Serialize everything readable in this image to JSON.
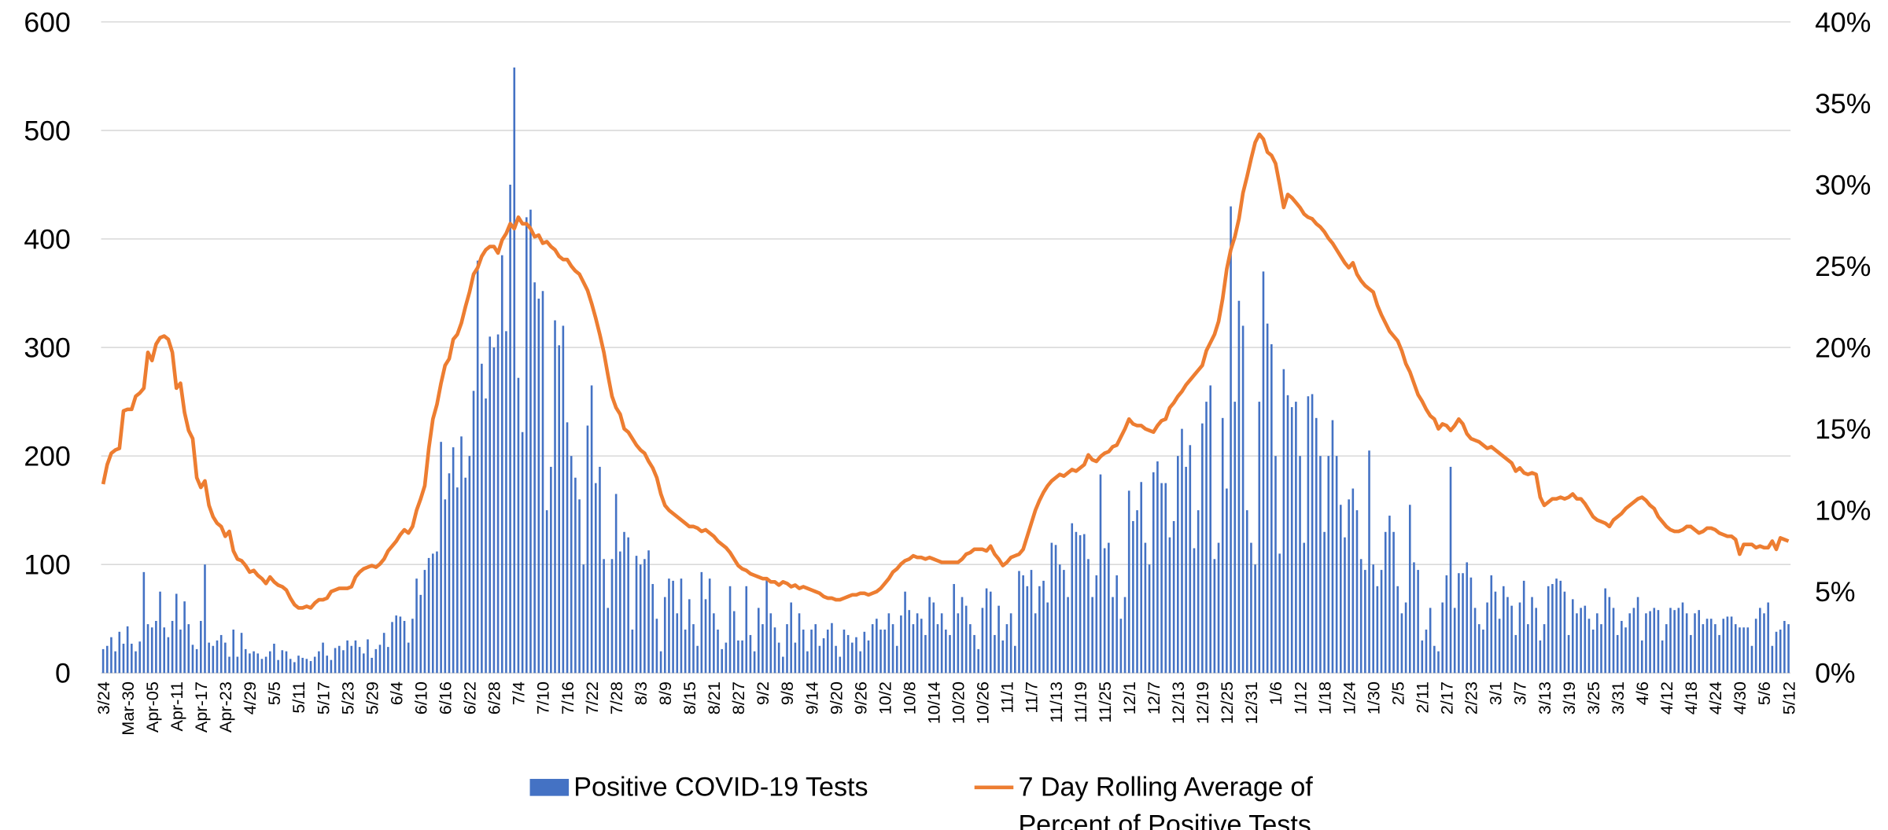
{
  "chart_data": {
    "type": "combo",
    "categories": [
      "3/24",
      null,
      null,
      null,
      null,
      null,
      "Mar-30",
      null,
      null,
      null,
      null,
      null,
      "Apr-05",
      null,
      null,
      null,
      null,
      null,
      "Apr-11",
      null,
      null,
      null,
      null,
      null,
      "Apr-17",
      null,
      null,
      null,
      null,
      null,
      "Apr-23",
      null,
      null,
      null,
      null,
      null,
      "4/29",
      null,
      null,
      null,
      null,
      null,
      "5/5",
      null,
      null,
      null,
      null,
      null,
      "5/11",
      null,
      null,
      null,
      null,
      null,
      "5/17",
      null,
      null,
      null,
      null,
      null,
      "5/23",
      null,
      null,
      null,
      null,
      null,
      "5/29",
      null,
      null,
      null,
      null,
      null,
      "6/4",
      null,
      null,
      null,
      null,
      null,
      "6/10",
      null,
      null,
      null,
      null,
      null,
      "6/16",
      null,
      null,
      null,
      null,
      null,
      "6/22",
      null,
      null,
      null,
      null,
      null,
      "6/28",
      null,
      null,
      null,
      null,
      null,
      "7/4",
      null,
      null,
      null,
      null,
      null,
      "7/10",
      null,
      null,
      null,
      null,
      null,
      "7/16",
      null,
      null,
      null,
      null,
      null,
      "7/22",
      null,
      null,
      null,
      null,
      null,
      "7/28",
      null,
      null,
      null,
      null,
      null,
      "8/3",
      null,
      null,
      null,
      null,
      null,
      "8/9",
      null,
      null,
      null,
      null,
      null,
      "8/15",
      null,
      null,
      null,
      null,
      null,
      "8/21",
      null,
      null,
      null,
      null,
      null,
      "8/27",
      null,
      null,
      null,
      null,
      null,
      "9/2",
      null,
      null,
      null,
      null,
      null,
      "9/8",
      null,
      null,
      null,
      null,
      null,
      "9/14",
      null,
      null,
      null,
      null,
      null,
      "9/20",
      null,
      null,
      null,
      null,
      null,
      "9/26",
      null,
      null,
      null,
      null,
      null,
      "10/2",
      null,
      null,
      null,
      null,
      null,
      "10/8",
      null,
      null,
      null,
      null,
      null,
      "10/14",
      null,
      null,
      null,
      null,
      null,
      "10/20",
      null,
      null,
      null,
      null,
      null,
      "10/26",
      null,
      null,
      null,
      null,
      null,
      "11/1",
      null,
      null,
      null,
      null,
      null,
      "11/7",
      null,
      null,
      null,
      null,
      null,
      "11/13",
      null,
      null,
      null,
      null,
      null,
      "11/19",
      null,
      null,
      null,
      null,
      null,
      "11/25",
      null,
      null,
      null,
      null,
      null,
      "12/1",
      null,
      null,
      null,
      null,
      null,
      "12/7",
      null,
      null,
      null,
      null,
      null,
      "12/13",
      null,
      null,
      null,
      null,
      null,
      "12/19",
      null,
      null,
      null,
      null,
      null,
      "12/25",
      null,
      null,
      null,
      null,
      null,
      "12/31",
      null,
      null,
      null,
      null,
      null,
      "1/6",
      null,
      null,
      null,
      null,
      null,
      "1/12",
      null,
      null,
      null,
      null,
      null,
      "1/18",
      null,
      null,
      null,
      null,
      null,
      "1/24",
      null,
      null,
      null,
      null,
      null,
      "1/30",
      null,
      null,
      null,
      null,
      null,
      "2/5",
      null,
      null,
      null,
      null,
      null,
      "2/11",
      null,
      null,
      null,
      null,
      null,
      "2/17",
      null,
      null,
      null,
      null,
      null,
      "2/23",
      null,
      null,
      null,
      null,
      null,
      "3/1",
      null,
      null,
      null,
      null,
      null,
      "3/7",
      null,
      null,
      null,
      null,
      null,
      "3/13",
      null,
      null,
      null,
      null,
      null,
      "3/19",
      null,
      null,
      null,
      null,
      null,
      "3/25",
      null,
      null,
      null,
      null,
      null,
      "3/31",
      null,
      null,
      null,
      null,
      null,
      "4/6",
      null,
      null,
      null,
      null,
      null,
      "4/12",
      null,
      null,
      null,
      null,
      null,
      "4/18",
      null,
      null,
      null,
      null,
      null,
      "4/24",
      null,
      null,
      null,
      null,
      null,
      "4/30",
      null,
      null,
      null,
      null,
      null,
      "5/6",
      null,
      null,
      null,
      null,
      null,
      "5/12"
    ],
    "series": [
      {
        "name": "Positive COVID-19 Tests",
        "type": "bar",
        "color": "#4472c4",
        "values": [
          22,
          25,
          33,
          20,
          38,
          27,
          43,
          27,
          20,
          29,
          93,
          45,
          42,
          48,
          75,
          42,
          33,
          48,
          73,
          40,
          66,
          45,
          26,
          22,
          48,
          100,
          28,
          25,
          30,
          35,
          28,
          15,
          40,
          15,
          37,
          22,
          18,
          20,
          18,
          13,
          15,
          20,
          27,
          12,
          21,
          20,
          13,
          10,
          16,
          14,
          13,
          11,
          15,
          20,
          28,
          16,
          12,
          23,
          25,
          21,
          30,
          25,
          30,
          24,
          18,
          31,
          14,
          22,
          26,
          37,
          24,
          47,
          53,
          52,
          48,
          28,
          50,
          87,
          72,
          95,
          106,
          110,
          112,
          213,
          160,
          184,
          208,
          171,
          218,
          180,
          200,
          260,
          380,
          285,
          253,
          310,
          300,
          312,
          385,
          315,
          450,
          558,
          272,
          222,
          420,
          427,
          360,
          345,
          352,
          150,
          190,
          325,
          302,
          320,
          231,
          200,
          180,
          160,
          100,
          228,
          265,
          175,
          190,
          105,
          60,
          105,
          165,
          112,
          130,
          125,
          40,
          108,
          100,
          105,
          113,
          82,
          50,
          20,
          70,
          87,
          85,
          55,
          87,
          40,
          68,
          45,
          25,
          93,
          68,
          87,
          55,
          40,
          22,
          28,
          80,
          57,
          30,
          30,
          80,
          35,
          20,
          60,
          45,
          86,
          55,
          42,
          28,
          15,
          45,
          65,
          28,
          55,
          40,
          20,
          40,
          45,
          25,
          32,
          40,
          46,
          25,
          15,
          40,
          35,
          28,
          33,
          20,
          38,
          30,
          45,
          50,
          40,
          40,
          55,
          45,
          25,
          53,
          75,
          58,
          45,
          55,
          50,
          35,
          70,
          65,
          45,
          55,
          40,
          35,
          82,
          55,
          70,
          62,
          45,
          35,
          22,
          60,
          78,
          75,
          35,
          62,
          30,
          45,
          55,
          25,
          94,
          90,
          80,
          95,
          55,
          80,
          85,
          65,
          120,
          118,
          100,
          95,
          70,
          138,
          130,
          127,
          128,
          105,
          70,
          90,
          183,
          115,
          120,
          70,
          90,
          50,
          70,
          168,
          140,
          150,
          176,
          120,
          100,
          185,
          195,
          175,
          175,
          125,
          140,
          200,
          225,
          190,
          210,
          115,
          150,
          230,
          250,
          265,
          105,
          120,
          235,
          170,
          430,
          250,
          343,
          320,
          150,
          120,
          100,
          250,
          370,
          322,
          303,
          200,
          110,
          280,
          256,
          245,
          250,
          200,
          120,
          255,
          257,
          235,
          200,
          130,
          200,
          233,
          200,
          155,
          125,
          160,
          170,
          150,
          105,
          95,
          205,
          100,
          80,
          95,
          130,
          145,
          130,
          80,
          55,
          65,
          155,
          102,
          95,
          30,
          40,
          60,
          25,
          20,
          65,
          90,
          190,
          60,
          92,
          92,
          102,
          88,
          60,
          45,
          40,
          65,
          90,
          75,
          50,
          80,
          70,
          62,
          35,
          65,
          85,
          45,
          70,
          60,
          30,
          45,
          80,
          82,
          87,
          85,
          75,
          35,
          68,
          55,
          60,
          62,
          50,
          40,
          55,
          45,
          78,
          70,
          60,
          35,
          48,
          42,
          55,
          60,
          70,
          30,
          55,
          57,
          60,
          58,
          30,
          45,
          60,
          58,
          60,
          65,
          55,
          35,
          55,
          58,
          45,
          50,
          50,
          45,
          35,
          50,
          52,
          52,
          45,
          42,
          42,
          42,
          25,
          50,
          60,
          55,
          65,
          25,
          38,
          40,
          48,
          45
        ]
      },
      {
        "name": "7 Day Rolling Average of Percent of Positive Tests",
        "type": "line",
        "axis": "y2",
        "color": "#ed7d31",
        "values": [
          11.6,
          12.8,
          13.5,
          13.7,
          13.8,
          16.1,
          16.2,
          16.2,
          17.0,
          17.2,
          17.5,
          19.7,
          19.2,
          20.2,
          20.6,
          20.7,
          20.5,
          19.7,
          17.5,
          17.8,
          16.0,
          14.9,
          14.4,
          12.0,
          11.4,
          11.8,
          10.3,
          9.6,
          9.2,
          9.0,
          8.4,
          8.7,
          7.5,
          7.0,
          6.9,
          6.6,
          6.2,
          6.3,
          6.0,
          5.8,
          5.5,
          5.9,
          5.6,
          5.4,
          5.3,
          5.1,
          4.6,
          4.2,
          4.0,
          4.0,
          4.1,
          4.0,
          4.3,
          4.5,
          4.5,
          4.6,
          5.0,
          5.1,
          5.2,
          5.2,
          5.2,
          5.3,
          5.9,
          6.2,
          6.4,
          6.5,
          6.6,
          6.5,
          6.7,
          7.0,
          7.5,
          7.8,
          8.1,
          8.5,
          8.8,
          8.6,
          9.0,
          10.0,
          10.7,
          11.5,
          13.8,
          15.6,
          16.5,
          17.8,
          18.9,
          19.3,
          20.5,
          20.8,
          21.5,
          22.5,
          23.4,
          24.5,
          24.9,
          25.6,
          26.0,
          26.2,
          26.2,
          25.8,
          26.6,
          27.0,
          27.6,
          27.3,
          28.0,
          27.6,
          27.6,
          27.3,
          26.8,
          26.9,
          26.4,
          26.5,
          26.2,
          26.0,
          25.6,
          25.4,
          25.4,
          25.0,
          24.7,
          24.5,
          24.0,
          23.5,
          22.7,
          21.8,
          20.8,
          19.7,
          18.3,
          17.0,
          16.3,
          15.9,
          15.0,
          14.8,
          14.4,
          14.0,
          13.7,
          13.5,
          13.0,
          12.6,
          12.0,
          11.0,
          10.3,
          10.0,
          9.8,
          9.6,
          9.4,
          9.2,
          9.0,
          9.0,
          8.9,
          8.7,
          8.8,
          8.6,
          8.4,
          8.1,
          7.9,
          7.7,
          7.4,
          7.0,
          6.6,
          6.4,
          6.3,
          6.1,
          6.0,
          5.9,
          5.8,
          5.8,
          5.6,
          5.6,
          5.4,
          5.6,
          5.5,
          5.3,
          5.4,
          5.2,
          5.3,
          5.2,
          5.1,
          5.0,
          4.9,
          4.7,
          4.6,
          4.6,
          4.5,
          4.5,
          4.6,
          4.7,
          4.8,
          4.8,
          4.9,
          4.9,
          4.8,
          4.9,
          5.0,
          5.2,
          5.5,
          5.8,
          6.2,
          6.4,
          6.7,
          6.9,
          7.0,
          7.2,
          7.1,
          7.1,
          7.0,
          7.1,
          7.0,
          6.9,
          6.8,
          6.8,
          6.8,
          6.8,
          6.8,
          7.0,
          7.3,
          7.4,
          7.6,
          7.6,
          7.6,
          7.5,
          7.8,
          7.3,
          7.0,
          6.6,
          6.8,
          7.1,
          7.2,
          7.3,
          7.6,
          8.4,
          9.2,
          10.0,
          10.6,
          11.1,
          11.5,
          11.8,
          12.0,
          12.2,
          12.1,
          12.3,
          12.5,
          12.4,
          12.6,
          12.8,
          13.4,
          13.1,
          13.0,
          13.3,
          13.5,
          13.6,
          13.9,
          14.0,
          14.5,
          15.0,
          15.6,
          15.3,
          15.2,
          15.2,
          15.0,
          14.9,
          14.8,
          15.2,
          15.5,
          15.6,
          16.3,
          16.6,
          17.0,
          17.3,
          17.7,
          18.0,
          18.3,
          18.6,
          18.9,
          19.8,
          20.3,
          20.8,
          21.6,
          23.0,
          24.8,
          26.0,
          26.8,
          27.9,
          29.5,
          30.5,
          31.6,
          32.6,
          33.1,
          32.8,
          32.0,
          31.8,
          31.3,
          30.0,
          28.6,
          29.4,
          29.2,
          28.9,
          28.6,
          28.2,
          28.0,
          27.9,
          27.6,
          27.4,
          27.1,
          26.7,
          26.4,
          26.0,
          25.6,
          25.2,
          24.9,
          25.2,
          24.5,
          24.1,
          23.8,
          23.6,
          23.4,
          22.6,
          22.0,
          21.5,
          21.0,
          20.7,
          20.4,
          19.8,
          19.0,
          18.5,
          17.8,
          17.1,
          16.7,
          16.2,
          15.8,
          15.6,
          15.0,
          15.3,
          15.2,
          14.9,
          15.2,
          15.6,
          15.3,
          14.7,
          14.4,
          14.3,
          14.2,
          14.0,
          13.8,
          13.9,
          13.7,
          13.5,
          13.3,
          13.1,
          12.9,
          12.4,
          12.6,
          12.3,
          12.2,
          12.3,
          12.2,
          10.8,
          10.3,
          10.5,
          10.7,
          10.7,
          10.8,
          10.7,
          10.8,
          11.0,
          10.7,
          10.7,
          10.4,
          10.0,
          9.6,
          9.4,
          9.3,
          9.2,
          9.0,
          9.4,
          9.6,
          9.8,
          10.1,
          10.3,
          10.5,
          10.7,
          10.8,
          10.6,
          10.3,
          10.1,
          9.6,
          9.3,
          9.0,
          8.8,
          8.7,
          8.7,
          8.8,
          9.0,
          9.0,
          8.8,
          8.6,
          8.7,
          8.9,
          8.9,
          8.8,
          8.6,
          8.5,
          8.4,
          8.4,
          8.2,
          7.3,
          7.9,
          7.9,
          7.9,
          7.7,
          7.8,
          7.7,
          7.7,
          8.1,
          7.6,
          8.3,
          8.2,
          8.1
        ]
      }
    ],
    "ylim": [
      0,
      600
    ],
    "yticks": [
      0,
      100,
      200,
      300,
      400,
      500,
      600
    ],
    "y2lim": [
      0,
      40
    ],
    "y2ticks": [
      {
        "value": 0,
        "label": "0%"
      },
      {
        "value": 5,
        "label": "5%"
      },
      {
        "value": 10,
        "label": "10%"
      },
      {
        "value": 15,
        "label": "15%"
      },
      {
        "value": 20,
        "label": "20%"
      },
      {
        "value": 25,
        "label": "25%"
      },
      {
        "value": 30,
        "label": "30%"
      },
      {
        "value": 35,
        "label": "35%"
      },
      {
        "value": 40,
        "label": "40%"
      }
    ],
    "grid": true,
    "legend": "bottom"
  }
}
